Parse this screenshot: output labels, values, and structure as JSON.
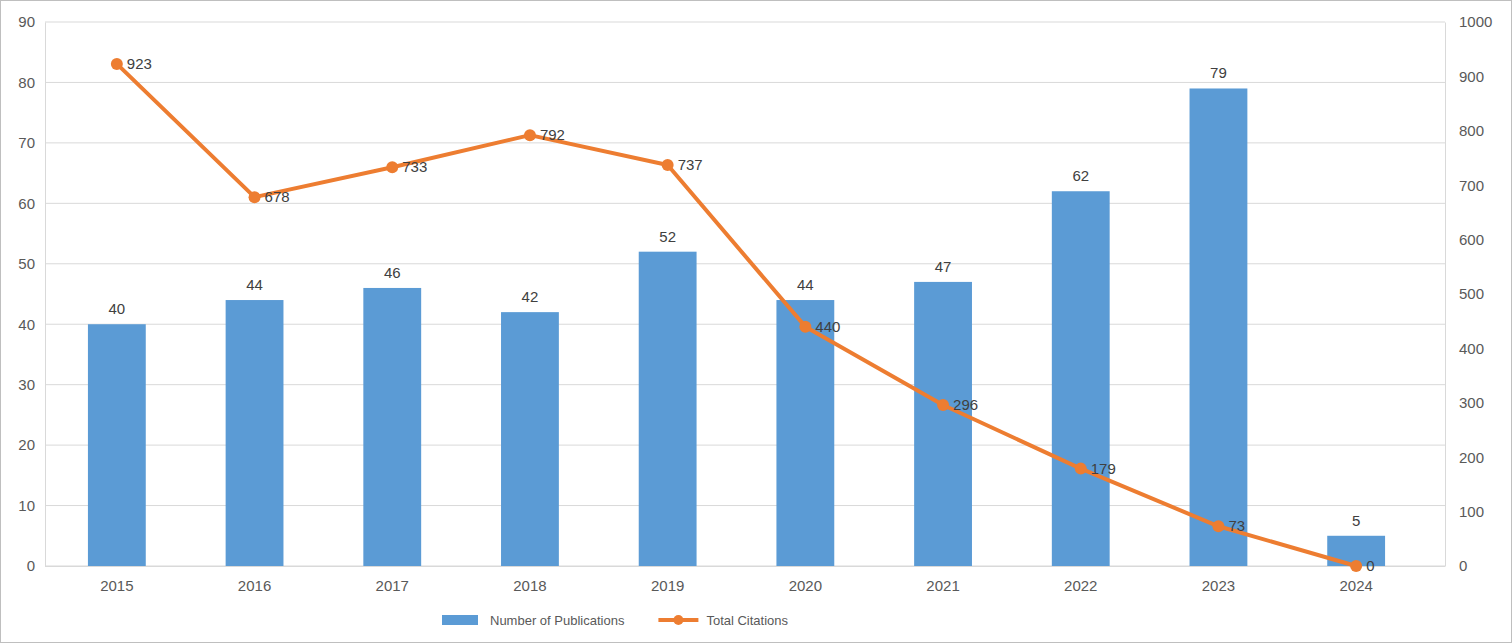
{
  "chart_data": {
    "type": "bar",
    "categories": [
      "2015",
      "2016",
      "2017",
      "2018",
      "2019",
      "2020",
      "2021",
      "2022",
      "2023",
      "2024"
    ],
    "series": [
      {
        "name": "Number of Publications",
        "type": "bar",
        "color": "#5b9bd5",
        "values": [
          40,
          44,
          46,
          42,
          52,
          44,
          47,
          62,
          79,
          5
        ]
      },
      {
        "name": "Total Citations",
        "type": "line",
        "axis": "y2",
        "color": "#ed7d31",
        "marker": "circle",
        "values": [
          923,
          678,
          733,
          792,
          737,
          440,
          296,
          179,
          73,
          0
        ]
      }
    ],
    "ylim": [
      0,
      90
    ],
    "yticks": [
      0,
      10,
      20,
      30,
      40,
      50,
      60,
      70,
      80,
      90
    ],
    "y2lim": [
      0,
      1000
    ],
    "y2ticks": [
      0,
      100,
      200,
      300,
      400,
      500,
      600,
      700,
      800,
      900,
      1000
    ],
    "grid": true,
    "data_labels": true,
    "legend": "bottom"
  }
}
